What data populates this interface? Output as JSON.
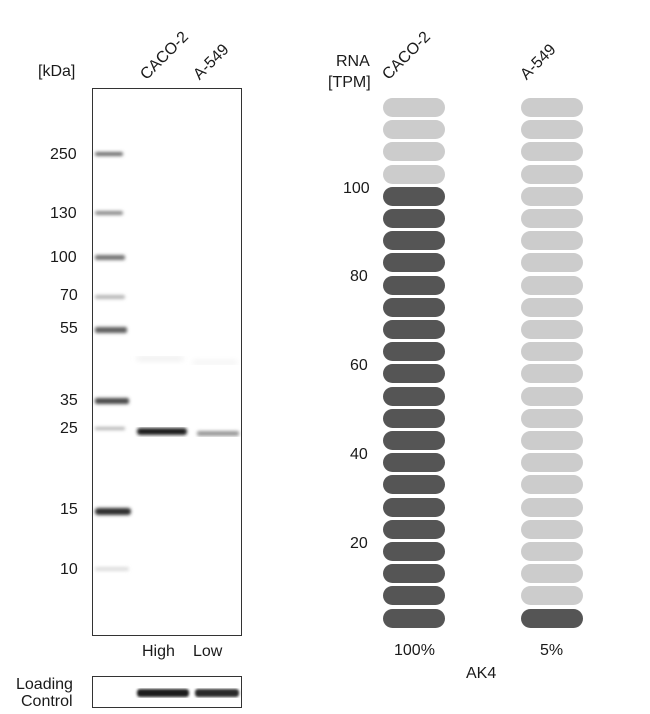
{
  "western_blot": {
    "unit_label": "[kDa]",
    "lanes": [
      "CACO-2",
      "A-549"
    ],
    "markers": [
      "250",
      "130",
      "100",
      "70",
      "55",
      "35",
      "25",
      "15",
      "10"
    ],
    "lane_levels": [
      "High",
      "Low"
    ],
    "loading_control_line1": "Loading",
    "loading_control_line2": "Control"
  },
  "rna_chart": {
    "axis_label_line1": "RNA",
    "axis_label_line2": "[TPM]",
    "samples": [
      {
        "name": "CACO-2",
        "percent_label": "100%",
        "filled_fraction": 1.0,
        "color": "#555555"
      },
      {
        "name": "A-549",
        "percent_label": "5%",
        "filled_fraction": 0.05,
        "color": "#cccccc"
      }
    ],
    "ticks": [
      "100",
      "80",
      "60",
      "40",
      "20"
    ],
    "gene": "AK4",
    "colors": {
      "high": "#555555",
      "low": "#cccccc"
    }
  }
}
